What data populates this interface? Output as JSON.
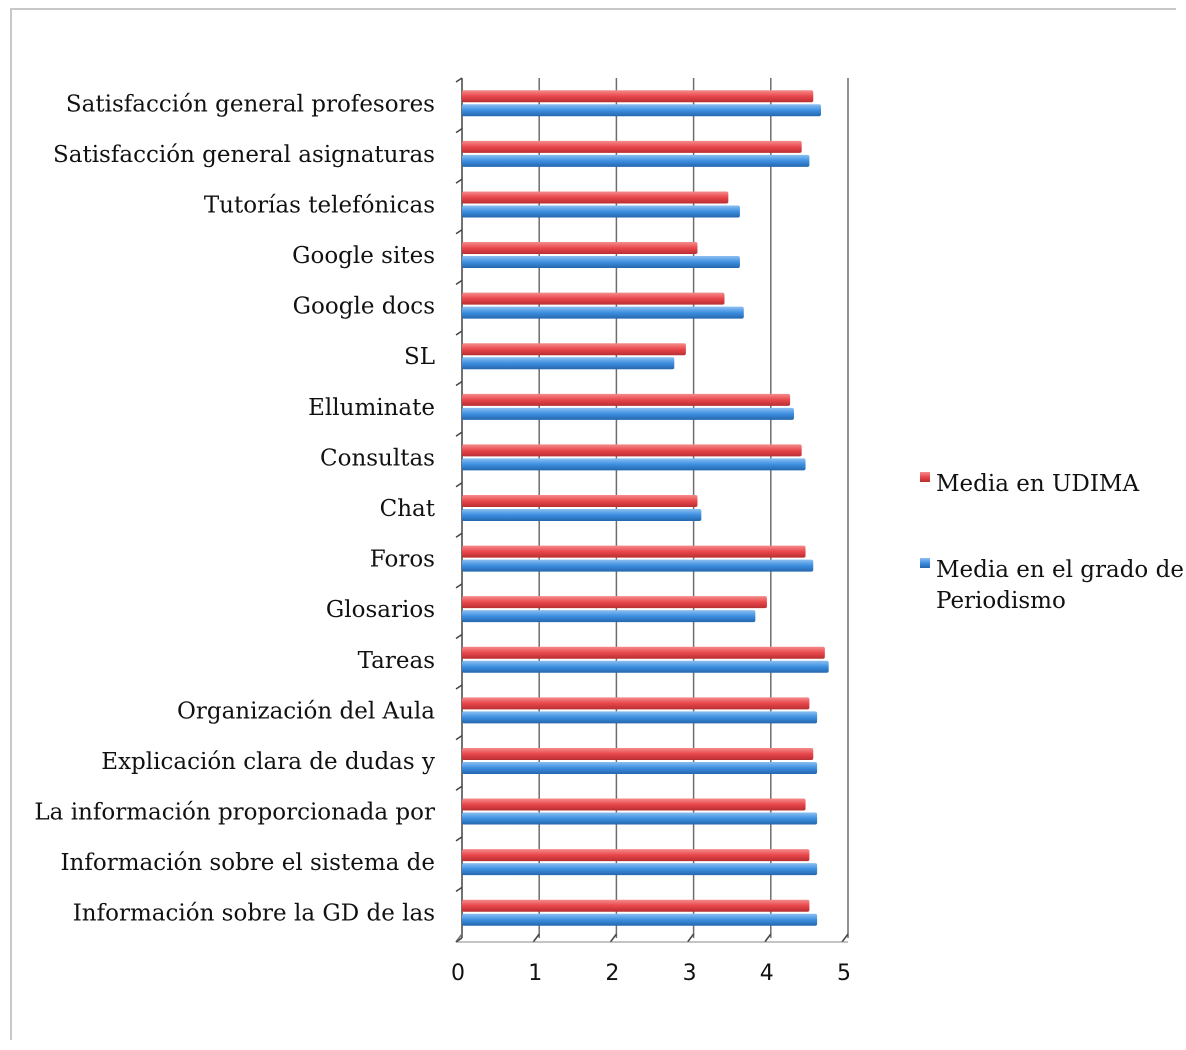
{
  "chart_data": {
    "type": "bar",
    "orientation": "horizontal",
    "categories": [
      "Satisfacción general profesores",
      "Satisfacción general asignaturas",
      "Tutorías telefónicas",
      "Google sites",
      "Google docs",
      "SL",
      "Elluminate",
      "Consultas",
      "Chat",
      "Foros",
      "Glosarios",
      "Tareas",
      "Organización del Aula",
      "Explicación clara de dudas y",
      "La información proporcionada por",
      "Información sobre el sistema de",
      "Información sobre la GD de las"
    ],
    "series": [
      {
        "name": "Media en UDIMA",
        "color": "#e8474b",
        "values": [
          4.55,
          4.4,
          3.45,
          3.05,
          3.4,
          2.9,
          4.25,
          4.4,
          3.05,
          4.45,
          3.95,
          4.7,
          4.5,
          4.55,
          4.45,
          4.5,
          4.5
        ]
      },
      {
        "name": "Media en el grado de Periodismo",
        "color": "#3d8fe0",
        "values": [
          4.65,
          4.5,
          3.6,
          3.6,
          3.65,
          2.75,
          4.3,
          4.45,
          3.1,
          4.55,
          3.8,
          4.75,
          4.6,
          4.6,
          4.6,
          4.6,
          4.6
        ]
      }
    ],
    "xlim": [
      0,
      5
    ],
    "xticks": [
      "0",
      "1",
      "2",
      "3",
      "4",
      "5"
    ],
    "grid": true,
    "legend_position": "right"
  }
}
